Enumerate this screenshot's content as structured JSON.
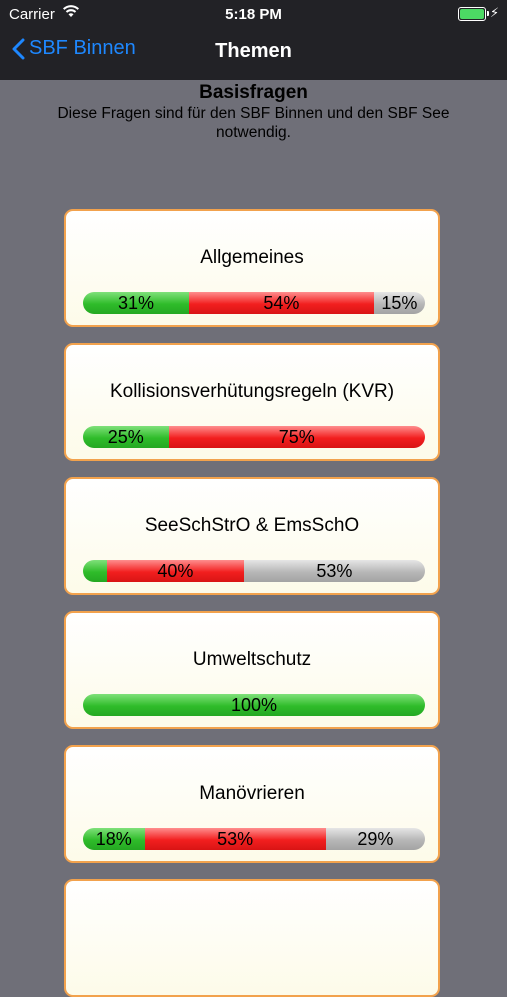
{
  "status_bar": {
    "carrier": "Carrier",
    "time": "5:18 PM"
  },
  "nav": {
    "back_label": "SBF Binnen",
    "title": "Themen"
  },
  "section": {
    "title": "Basisfragen",
    "description": "Diese Fragen sind für den SBF Binnen und den SBF See notwendig."
  },
  "topics": [
    {
      "title": "Allgemeines",
      "segments": [
        {
          "color": "green",
          "pct": 31,
          "label": "31%"
        },
        {
          "color": "red",
          "pct": 54,
          "label": "54%"
        },
        {
          "color": "grey",
          "pct": 15,
          "label": "15%"
        }
      ]
    },
    {
      "title": "Kollisionsverhütungsregeln (KVR)",
      "segments": [
        {
          "color": "green",
          "pct": 25,
          "label": "25%"
        },
        {
          "color": "red",
          "pct": 75,
          "label": "75%"
        }
      ]
    },
    {
      "title": "SeeSchStrO & EmsSchO",
      "segments": [
        {
          "color": "green",
          "pct": 7,
          "label": ""
        },
        {
          "color": "red",
          "pct": 40,
          "label": "40%"
        },
        {
          "color": "grey",
          "pct": 53,
          "label": "53%"
        }
      ]
    },
    {
      "title": "Umweltschutz",
      "segments": [
        {
          "color": "green",
          "pct": 100,
          "label": "100%"
        }
      ]
    },
    {
      "title": "Manövrieren",
      "segments": [
        {
          "color": "green",
          "pct": 18,
          "label": "18%"
        },
        {
          "color": "red",
          "pct": 53,
          "label": "53%"
        },
        {
          "color": "grey",
          "pct": 29,
          "label": "29%"
        }
      ]
    },
    {
      "title": "",
      "segments": []
    }
  ],
  "colors": {
    "nav_bg": "#222226",
    "back_accent": "#1e88ff",
    "page_bg": "#6f6f78",
    "card_border": "#f2a24d",
    "battery": "#4cd964"
  }
}
